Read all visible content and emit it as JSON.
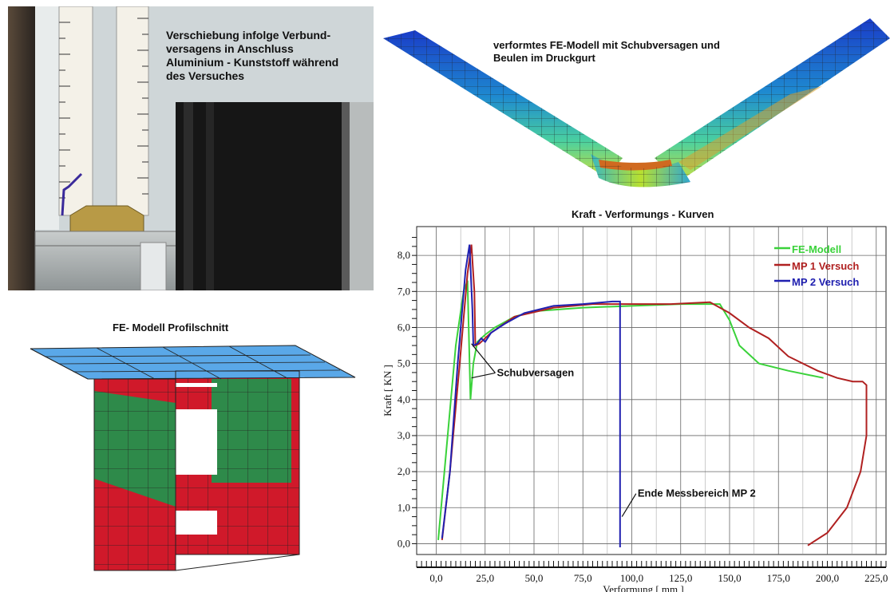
{
  "photo": {
    "caption": "Verschiebung infolge Verbund-\nversagens  in Anschluss\nAluminium - Kunststoff während\ndes Versuches"
  },
  "fe_deformed": {
    "caption": "verformtes FE-Modell mit Schubversagen und\nBeulen im Druckgurt"
  },
  "fe_section": {
    "title": "FE- Modell Profilschnitt"
  },
  "colors": {
    "fe_modell": "#3ad23a",
    "mp1": "#b02020",
    "mp2": "#2020b0",
    "section_red": "#d0192a",
    "section_green": "#2e8a4a",
    "section_blue": "#5aa8e8"
  },
  "chart_data": {
    "type": "line",
    "title": "Kraft - Verformungs - Kurven",
    "xlabel": "Verformung [ mm ]",
    "ylabel": "Kraft [ KN ]",
    "xlim": [
      -10,
      230
    ],
    "ylim": [
      -0.3,
      8.8
    ],
    "x_ticks": [
      "0,0",
      "25,0",
      "50,0",
      "75,0",
      "100,0",
      "125,0",
      "150,0",
      "175,0",
      "200,0",
      "225,0"
    ],
    "y_ticks": [
      "0,0",
      "1,0",
      "2,0",
      "3,0",
      "4,0",
      "5,0",
      "6,0",
      "7,0",
      "8,0"
    ],
    "grid": true,
    "legend_position": "top-right",
    "series": [
      {
        "name": "FE-Modell",
        "color": "#3ad23a",
        "points": [
          [
            1,
            0.1
          ],
          [
            5,
            2.5
          ],
          [
            10,
            5.5
          ],
          [
            14,
            7.0
          ],
          [
            16,
            7.3
          ],
          [
            17.5,
            4.0
          ],
          [
            19,
            5.0
          ],
          [
            21,
            5.6
          ],
          [
            25,
            5.8
          ],
          [
            30,
            6.0
          ],
          [
            40,
            6.3
          ],
          [
            50,
            6.45
          ],
          [
            75,
            6.55
          ],
          [
            100,
            6.6
          ],
          [
            125,
            6.65
          ],
          [
            145,
            6.65
          ],
          [
            150,
            6.2
          ],
          [
            155,
            5.5
          ],
          [
            165,
            5.0
          ],
          [
            180,
            4.8
          ],
          [
            198,
            4.6
          ]
        ]
      },
      {
        "name": "MP 1 Versuch",
        "color": "#b02020",
        "points": [
          [
            3,
            0.1
          ],
          [
            7,
            2.0
          ],
          [
            12,
            5.0
          ],
          [
            16,
            7.5
          ],
          [
            18,
            8.3
          ],
          [
            19.5,
            7.0
          ],
          [
            20,
            5.5
          ],
          [
            22,
            5.55
          ],
          [
            28,
            5.85
          ],
          [
            40,
            6.3
          ],
          [
            60,
            6.55
          ],
          [
            80,
            6.65
          ],
          [
            100,
            6.65
          ],
          [
            120,
            6.65
          ],
          [
            140,
            6.7
          ],
          [
            150,
            6.4
          ],
          [
            160,
            6.0
          ],
          [
            170,
            5.7
          ],
          [
            180,
            5.2
          ],
          [
            195,
            4.8
          ],
          [
            205,
            4.6
          ],
          [
            213,
            4.5
          ],
          [
            218,
            4.5
          ],
          [
            220,
            4.4
          ],
          [
            220,
            3.0
          ],
          [
            217,
            2.0
          ],
          [
            210,
            1.0
          ],
          [
            200,
            0.3
          ],
          [
            190,
            -0.05
          ]
        ]
      },
      {
        "name": "MP 2 Versuch",
        "color": "#2020b0",
        "points": [
          [
            3,
            0.15
          ],
          [
            7,
            2.0
          ],
          [
            11,
            5.0
          ],
          [
            15,
            7.6
          ],
          [
            17,
            8.3
          ],
          [
            18.5,
            6.5
          ],
          [
            19,
            5.5
          ],
          [
            21,
            5.55
          ],
          [
            23,
            5.7
          ],
          [
            25,
            5.6
          ],
          [
            28,
            5.85
          ],
          [
            35,
            6.1
          ],
          [
            45,
            6.4
          ],
          [
            60,
            6.6
          ],
          [
            75,
            6.65
          ],
          [
            90,
            6.72
          ],
          [
            94,
            6.72
          ],
          [
            94,
            -0.1
          ]
        ]
      }
    ],
    "annotations": [
      {
        "text": "Schubversagen",
        "x": 31,
        "y": 4.65,
        "pointers": [
          [
            18,
            4.6
          ],
          [
            18,
            5.55
          ]
        ]
      },
      {
        "text": "Ende Messbereich MP 2",
        "x": 103,
        "y": 1.3,
        "pointers": [
          [
            95,
            0.75
          ]
        ]
      }
    ]
  }
}
